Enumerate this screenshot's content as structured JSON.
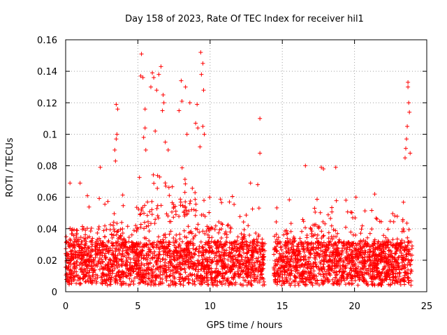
{
  "chart_data": {
    "type": "scatter",
    "title": "Day 158 of 2023, Rate Of TEC Index for receiver hil1",
    "xlabel": "GPS time / hours",
    "ylabel": "ROTI / TECUs",
    "xlim": [
      0,
      25
    ],
    "ylim": [
      0,
      0.16
    ],
    "xticks": [
      0,
      5,
      10,
      15,
      20,
      25
    ],
    "yticks": [
      0,
      0.02,
      0.04,
      0.06,
      0.08,
      0.1,
      0.12,
      0.14,
      0.16
    ],
    "xtick_labels": [
      "0",
      "5",
      "10",
      "15",
      "20",
      "25"
    ],
    "ytick_labels": [
      "0",
      "0.02",
      "0.04",
      "0.06",
      "0.08",
      "0.1",
      "0.12",
      "0.14",
      "0.16"
    ],
    "grid": true,
    "marker": "+",
    "marker_color": "#ff0000",
    "data_gap_hours": [
      13.8,
      14.4
    ],
    "outliers": [
      {
        "x": 5.25,
        "y": 0.151
      },
      {
        "x": 9.35,
        "y": 0.152
      },
      {
        "x": 6.6,
        "y": 0.143
      },
      {
        "x": 5.2,
        "y": 0.137
      },
      {
        "x": 5.35,
        "y": 0.136
      },
      {
        "x": 6.0,
        "y": 0.139
      },
      {
        "x": 6.1,
        "y": 0.136
      },
      {
        "x": 6.45,
        "y": 0.138
      },
      {
        "x": 9.5,
        "y": 0.145
      },
      {
        "x": 9.4,
        "y": 0.138
      },
      {
        "x": 8.0,
        "y": 0.134
      },
      {
        "x": 6.3,
        "y": 0.128
      },
      {
        "x": 5.9,
        "y": 0.13
      },
      {
        "x": 8.3,
        "y": 0.13
      },
      {
        "x": 9.55,
        "y": 0.128
      },
      {
        "x": 3.5,
        "y": 0.119
      },
      {
        "x": 3.6,
        "y": 0.116
      },
      {
        "x": 6.75,
        "y": 0.125
      },
      {
        "x": 6.8,
        "y": 0.12
      },
      {
        "x": 8.05,
        "y": 0.121
      },
      {
        "x": 8.6,
        "y": 0.12
      },
      {
        "x": 9.1,
        "y": 0.119
      },
      {
        "x": 6.7,
        "y": 0.115
      },
      {
        "x": 5.5,
        "y": 0.116
      },
      {
        "x": 7.85,
        "y": 0.115
      },
      {
        "x": 13.45,
        "y": 0.11
      },
      {
        "x": 13.45,
        "y": 0.088
      },
      {
        "x": 23.7,
        "y": 0.133
      },
      {
        "x": 23.7,
        "y": 0.13
      },
      {
        "x": 23.75,
        "y": 0.12
      },
      {
        "x": 23.8,
        "y": 0.114
      },
      {
        "x": 23.65,
        "y": 0.105
      },
      {
        "x": 23.6,
        "y": 0.097
      },
      {
        "x": 23.55,
        "y": 0.091
      },
      {
        "x": 23.85,
        "y": 0.088
      },
      {
        "x": 23.5,
        "y": 0.085
      },
      {
        "x": 3.55,
        "y": 0.1
      },
      {
        "x": 3.5,
        "y": 0.097
      },
      {
        "x": 3.4,
        "y": 0.09
      },
      {
        "x": 3.45,
        "y": 0.083
      },
      {
        "x": 5.4,
        "y": 0.098
      },
      {
        "x": 5.5,
        "y": 0.104
      },
      {
        "x": 5.55,
        "y": 0.09
      },
      {
        "x": 6.2,
        "y": 0.102
      },
      {
        "x": 6.9,
        "y": 0.095
      },
      {
        "x": 7.1,
        "y": 0.09
      },
      {
        "x": 8.4,
        "y": 0.1
      },
      {
        "x": 9.0,
        "y": 0.107
      },
      {
        "x": 9.15,
        "y": 0.104
      },
      {
        "x": 9.3,
        "y": 0.092
      },
      {
        "x": 9.5,
        "y": 0.105
      },
      {
        "x": 9.6,
        "y": 0.1
      },
      {
        "x": 16.6,
        "y": 0.08
      },
      {
        "x": 17.7,
        "y": 0.079
      },
      {
        "x": 17.85,
        "y": 0.078
      },
      {
        "x": 18.7,
        "y": 0.079
      },
      {
        "x": 2.4,
        "y": 0.079
      },
      {
        "x": 0.3,
        "y": 0.069
      },
      {
        "x": 1.0,
        "y": 0.069
      },
      {
        "x": 12.8,
        "y": 0.069
      },
      {
        "x": 13.3,
        "y": 0.068
      },
      {
        "x": 21.4,
        "y": 0.062
      },
      {
        "x": 20.1,
        "y": 0.06
      }
    ]
  }
}
